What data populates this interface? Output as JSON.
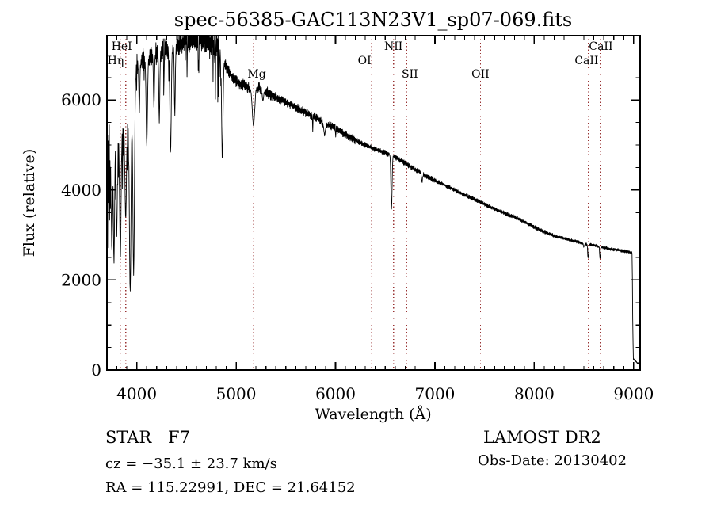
{
  "title": "spec-56385-GAC113N23V1_sp07-069.fits",
  "axes": {
    "xlabel": "Wavelength (Å)",
    "ylabel": "Flux (relative)",
    "x_ticks": [
      4000,
      5000,
      6000,
      7000,
      8000,
      9000
    ],
    "y_ticks": [
      0,
      2000,
      4000,
      6000
    ],
    "x_minor_step": 100,
    "y_minor_step": 500,
    "xlim": [
      3700,
      9065
    ],
    "ylim": [
      0,
      7430
    ]
  },
  "line_markers": [
    {
      "label": "HeI",
      "wavelength": 3889,
      "row": 1,
      "dx": -5
    },
    {
      "label": "Hη",
      "wavelength": 3835,
      "row": 2,
      "dx": -6
    },
    {
      "label": "Mg",
      "wavelength": 5175,
      "row": 3,
      "dx": 4
    },
    {
      "label": "OI",
      "wavelength": 6364,
      "row": 2,
      "dx": -9
    },
    {
      "label": "NII",
      "wavelength": 6583,
      "row": 1,
      "dx": 0
    },
    {
      "label": "SII",
      "wavelength": 6716,
      "row": 3,
      "dx": 4
    },
    {
      "label": "OII",
      "wavelength": 7458,
      "row": 3,
      "dx": 0
    },
    {
      "label": "CaII",
      "wavelength": 8542,
      "row": 2,
      "dx": -2
    },
    {
      "label": "CaII",
      "wavelength": 8662,
      "row": 1,
      "dx": 1
    }
  ],
  "chart_data": {
    "type": "line",
    "title": "spec-56385-GAC113N23V1_sp07-069.fits",
    "xlabel": "Wavelength (Å)",
    "ylabel": "Flux (relative)",
    "xlim": [
      3700,
      9065
    ],
    "ylim": [
      0,
      7430
    ],
    "grid": false,
    "line_color": "#000000",
    "marker_line_color": "#993333",
    "continuum_points": [
      [
        3700,
        3600
      ],
      [
        3715,
        4300
      ],
      [
        3735,
        4700
      ],
      [
        3760,
        4900
      ],
      [
        3790,
        5100
      ],
      [
        3820,
        5200
      ],
      [
        3855,
        5350
      ],
      [
        3880,
        5300
      ],
      [
        3905,
        5500
      ],
      [
        3930,
        5600
      ],
      [
        3952,
        5900
      ],
      [
        3975,
        6400
      ],
      [
        4000,
        6820
      ],
      [
        4080,
        6920
      ],
      [
        4160,
        7000
      ],
      [
        4240,
        7080
      ],
      [
        4330,
        7160
      ],
      [
        4420,
        7240
      ],
      [
        4510,
        7310
      ],
      [
        4600,
        7350
      ],
      [
        4690,
        7330
      ],
      [
        4760,
        7270
      ],
      [
        4820,
        7180
      ],
      [
        4870,
        6900
      ],
      [
        4920,
        6650
      ],
      [
        4970,
        6480
      ],
      [
        5020,
        6380
      ],
      [
        5090,
        6320
      ],
      [
        5160,
        6230
      ],
      [
        5230,
        6280
      ],
      [
        5300,
        6190
      ],
      [
        5380,
        6080
      ],
      [
        5460,
        5990
      ],
      [
        5540,
        5910
      ],
      [
        5620,
        5820
      ],
      [
        5700,
        5720
      ],
      [
        5780,
        5630
      ],
      [
        5860,
        5530
      ],
      [
        5940,
        5430
      ],
      [
        6020,
        5330
      ],
      [
        6100,
        5230
      ],
      [
        6180,
        5130
      ],
      [
        6260,
        5040
      ],
      [
        6340,
        4960
      ],
      [
        6420,
        4890
      ],
      [
        6500,
        4830
      ],
      [
        6580,
        4760
      ],
      [
        6660,
        4650
      ],
      [
        6740,
        4540
      ],
      [
        6820,
        4430
      ],
      [
        6900,
        4330
      ],
      [
        6990,
        4220
      ],
      [
        7080,
        4130
      ],
      [
        7170,
        4030
      ],
      [
        7260,
        3930
      ],
      [
        7350,
        3840
      ],
      [
        7440,
        3750
      ],
      [
        7530,
        3650
      ],
      [
        7620,
        3560
      ],
      [
        7710,
        3480
      ],
      [
        7800,
        3400
      ],
      [
        7890,
        3300
      ],
      [
        7980,
        3200
      ],
      [
        8070,
        3100
      ],
      [
        8160,
        3010
      ],
      [
        8250,
        2950
      ],
      [
        8340,
        2900
      ],
      [
        8430,
        2850
      ],
      [
        8520,
        2800
      ],
      [
        8610,
        2770
      ],
      [
        8700,
        2720
      ],
      [
        8790,
        2680
      ],
      [
        8880,
        2650
      ],
      [
        8960,
        2620
      ],
      [
        8985,
        2600
      ],
      [
        8990,
        1200
      ],
      [
        8996,
        250
      ],
      [
        9040,
        150
      ],
      [
        9060,
        150
      ]
    ],
    "absorption_lines": [
      [
        3750,
        2600,
        6
      ],
      [
        3771,
        2350,
        6
      ],
      [
        3798,
        2900,
        6
      ],
      [
        3835,
        2450,
        7
      ],
      [
        3889,
        3300,
        7
      ],
      [
        3934,
        1700,
        8
      ],
      [
        3969,
        2100,
        8
      ],
      [
        4026,
        5700,
        5
      ],
      [
        4101,
        4950,
        7
      ],
      [
        4173,
        5800,
        5
      ],
      [
        4227,
        5450,
        5
      ],
      [
        4340,
        4800,
        7
      ],
      [
        4383,
        5600,
        5
      ],
      [
        4861,
        4650,
        7
      ],
      [
        5175,
        5400,
        12
      ],
      [
        5270,
        5950,
        7
      ],
      [
        5890,
        5180,
        8
      ],
      [
        6563,
        3540,
        6
      ],
      [
        6870,
        4150,
        6
      ],
      [
        8498,
        2680,
        5
      ],
      [
        8542,
        2440,
        5
      ],
      [
        8662,
        2460,
        5
      ]
    ],
    "noise_segments": [
      [
        3700,
        3960,
        1350
      ],
      [
        3960,
        4000,
        600
      ],
      [
        4000,
        4880,
        270
      ],
      [
        4880,
        5400,
        130
      ],
      [
        5400,
        6200,
        95
      ],
      [
        6200,
        7000,
        60
      ],
      [
        7000,
        8200,
        45
      ],
      [
        8200,
        8990,
        35
      ],
      [
        8990,
        9065,
        15
      ]
    ],
    "random_dips": [
      {
        "range": [
          4000,
          4900
        ],
        "p": 0.06,
        "max": 1500
      },
      {
        "range": [
          4900,
          6300
        ],
        "p": 0.035,
        "max": 420
      }
    ],
    "seed": 42
  },
  "footer": {
    "class_label": "STAR",
    "subclass": "F7",
    "survey": "LAMOST DR2",
    "cz_line": "cz = −35.1 ± 23.7 km/s",
    "obs_date_line": "Obs-Date: 20130402",
    "radec_line": "RA = 115.22991, DEC =  21.64152"
  }
}
